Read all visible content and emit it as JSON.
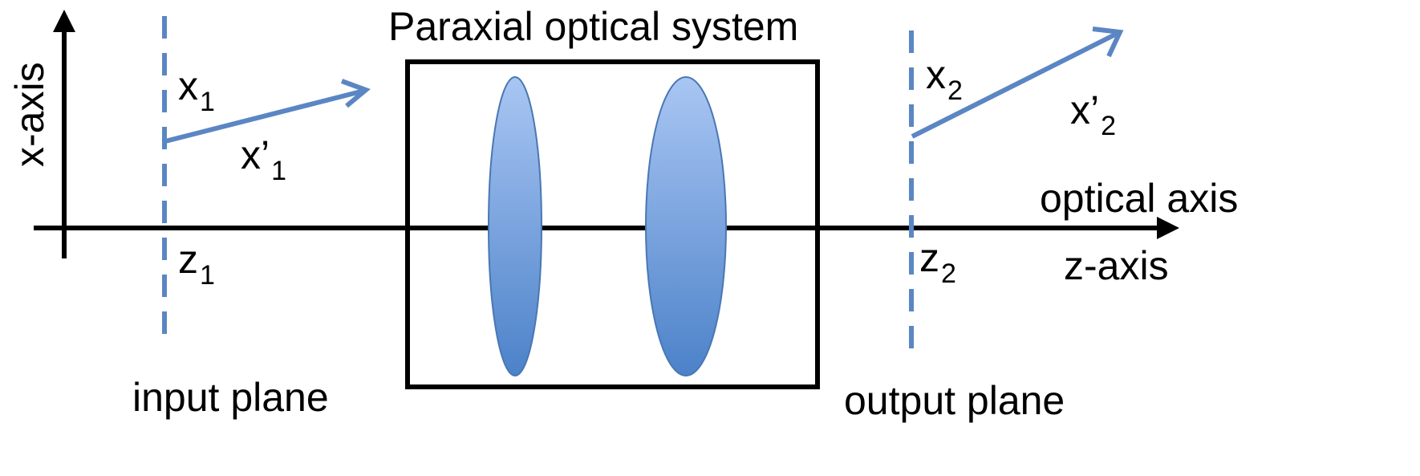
{
  "title": "Paraxial optical system",
  "axes": {
    "x_axis_label": "x-axis",
    "z_axis_label": "z-axis",
    "optical_axis_label": "optical axis"
  },
  "planes": {
    "input": {
      "label": "input plane",
      "position_var": "z",
      "position_sub": "1",
      "height_var": "x",
      "height_sub": "1",
      "slope_var": "x’",
      "slope_sub": "1"
    },
    "output": {
      "label": "output plane",
      "position_var": "z",
      "position_sub": "2",
      "height_var": "x",
      "height_sub": "2",
      "slope_var": "x’",
      "slope_sub": "2"
    }
  },
  "colors": {
    "line": "#000000",
    "ray": "#5b86c4",
    "plane": "#5b86c4",
    "lens_top": "#a9c6f3",
    "lens_bottom": "#4c82c9"
  }
}
